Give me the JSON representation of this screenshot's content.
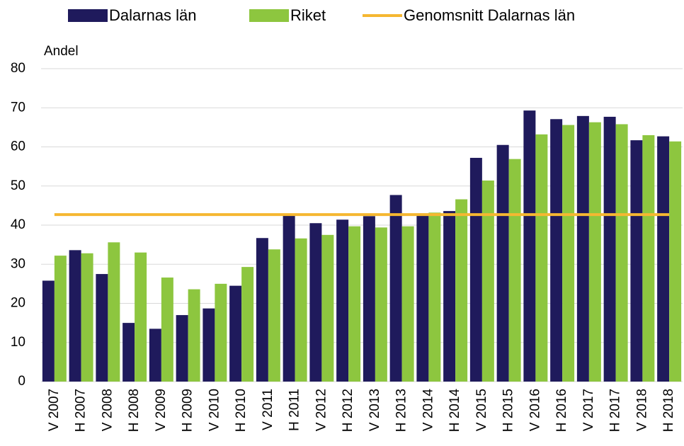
{
  "chart_data": {
    "type": "bar",
    "y_label": "Andel",
    "categories": [
      "V 2007",
      "H 2007",
      "V 2008",
      "H 2008",
      "V 2009",
      "H 2009",
      "V 2010",
      "H 2010",
      "V 2011",
      "H 2011",
      "V 2012",
      "H 2012",
      "V 2013",
      "H 2013",
      "V 2014",
      "H 2014",
      "V 2015",
      "H 2015",
      "V 2016",
      "H 2016",
      "V 2017",
      "H 2017",
      "V 2018",
      "H 2018"
    ],
    "series": [
      {
        "name": "Dalarnas län",
        "type": "bar",
        "color": "#1f1a5c",
        "values": [
          25.8,
          33.6,
          27.5,
          15,
          13.5,
          17,
          18.7,
          24.5,
          36.7,
          42.5,
          40.5,
          41.4,
          42.3,
          47.7,
          43,
          43.6,
          57.2,
          60.5,
          69.3,
          67.1,
          67.9,
          67.7,
          61.7,
          62.7
        ]
      },
      {
        "name": "Riket",
        "type": "bar",
        "color": "#8dc63f",
        "values": [
          32.2,
          32.8,
          35.6,
          33,
          26.6,
          23.6,
          25,
          29.3,
          33.8,
          36.6,
          37.5,
          39.7,
          39.4,
          39.7,
          43.2,
          46.6,
          51.4,
          56.9,
          63.2,
          65.6,
          66.3,
          65.8,
          63,
          61.4
        ]
      },
      {
        "name": "Genomsnitt Dalarnas  län",
        "type": "line",
        "color": "#f5b731",
        "values": [
          42.7,
          42.7,
          42.7,
          42.7,
          42.7,
          42.7,
          42.7,
          42.7,
          42.7,
          42.7,
          42.7,
          42.7,
          42.7,
          42.7,
          42.7,
          42.7,
          42.7,
          42.7,
          42.7,
          42.7,
          42.7,
          42.7,
          42.7,
          42.7
        ]
      }
    ],
    "ylim": [
      0,
      80
    ],
    "yticks": [
      0,
      10,
      20,
      30,
      40,
      50,
      60,
      70,
      80
    ],
    "grid": true,
    "legend": "top"
  }
}
